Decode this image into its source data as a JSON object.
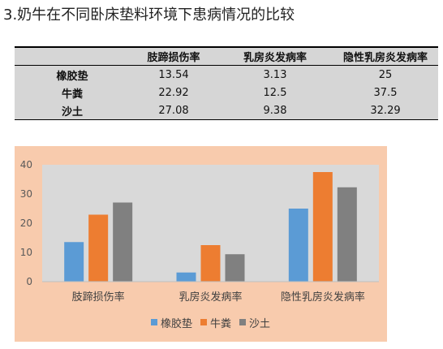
{
  "title": "3.奶牛在不同卧床垫料环境下患病情况的比较",
  "table": {
    "columns": [
      "肢蹄损伤率",
      "乳房炎发病率",
      "隐性乳房炎发病率"
    ],
    "rows": [
      {
        "label": "橡胶垫",
        "values": [
          "13.54",
          "3.13",
          "25"
        ]
      },
      {
        "label": "牛粪",
        "values": [
          "22.92",
          "12.5",
          "37.5"
        ]
      },
      {
        "label": "沙土",
        "values": [
          "27.08",
          "9.38",
          "32.29"
        ]
      }
    ]
  },
  "chart_data": {
    "type": "bar",
    "categories": [
      "肢蹄损伤率",
      "乳房炎发病率",
      "隐性乳房炎发病率"
    ],
    "series": [
      {
        "name": "橡胶垫",
        "values": [
          13.54,
          3.13,
          25
        ],
        "color": "#5b9bd5"
      },
      {
        "name": "牛粪",
        "values": [
          22.92,
          12.5,
          37.5
        ],
        "color": "#ed7d31"
      },
      {
        "name": "沙土",
        "values": [
          27.08,
          9.38,
          32.29
        ],
        "color": "#808080"
      }
    ],
    "ylim": [
      0,
      40
    ],
    "yticks": [
      0,
      10,
      20,
      30,
      40
    ],
    "grid": false,
    "legend": "bottom"
  }
}
